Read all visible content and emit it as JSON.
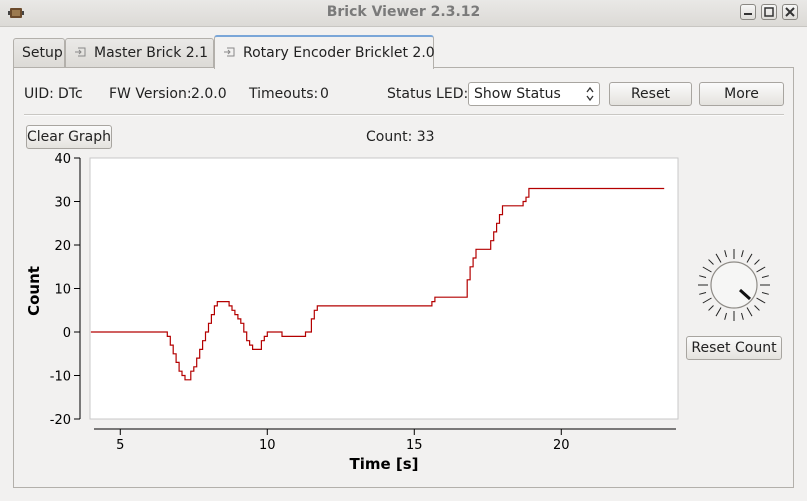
{
  "window": {
    "title": "Brick Viewer 2.3.12"
  },
  "tabs": [
    {
      "label": "Setup"
    },
    {
      "label": "Master Brick 2.1"
    },
    {
      "label": "Rotary Encoder Bricklet 2.0"
    }
  ],
  "info": {
    "uid_label": "UID:",
    "uid": "DTc",
    "fw_label": "FW Version:",
    "fw": "2.0.0",
    "timeouts_label": "Timeouts:",
    "timeouts": "0",
    "status_led_label": "Status LED:",
    "status_led_value": "Show Status",
    "reset_label": "Reset",
    "more_label": "More"
  },
  "graph_controls": {
    "clear_label": "Clear Graph",
    "count_text": "Count: 33"
  },
  "knob": {
    "reset_count_label": "Reset Count",
    "ticks": 24
  },
  "colors": {
    "trace": "#b40000",
    "tab_accent": "#7aa6d8"
  },
  "chart_data": {
    "type": "line",
    "xlabel": "Time [s]",
    "ylabel": "Count",
    "xticks": [
      5,
      10,
      15,
      20
    ],
    "yticks": [
      -20,
      -10,
      0,
      10,
      20,
      30,
      40
    ],
    "xlim": [
      3.97,
      23.97
    ],
    "ylim": [
      -20,
      40
    ],
    "series": [
      {
        "values": [
          [
            4.0,
            0
          ],
          [
            6.5,
            0
          ],
          [
            6.6,
            -1
          ],
          [
            6.7,
            -3
          ],
          [
            6.8,
            -5
          ],
          [
            6.9,
            -7
          ],
          [
            7.0,
            -9
          ],
          [
            7.1,
            -10
          ],
          [
            7.2,
            -11
          ],
          [
            7.3,
            -11
          ],
          [
            7.4,
            -9
          ],
          [
            7.5,
            -8
          ],
          [
            7.6,
            -6
          ],
          [
            7.7,
            -4
          ],
          [
            7.8,
            -2
          ],
          [
            7.9,
            0
          ],
          [
            8.0,
            2
          ],
          [
            8.1,
            4
          ],
          [
            8.2,
            6
          ],
          [
            8.3,
            7
          ],
          [
            8.6,
            7
          ],
          [
            8.7,
            6
          ],
          [
            8.8,
            5
          ],
          [
            8.9,
            4
          ],
          [
            9.0,
            3
          ],
          [
            9.1,
            2
          ],
          [
            9.2,
            0
          ],
          [
            9.3,
            -2
          ],
          [
            9.4,
            -3
          ],
          [
            9.5,
            -4
          ],
          [
            9.7,
            -4
          ],
          [
            9.8,
            -2
          ],
          [
            9.9,
            -1
          ],
          [
            10.0,
            0
          ],
          [
            10.4,
            0
          ],
          [
            10.5,
            -1
          ],
          [
            11.2,
            -1
          ],
          [
            11.3,
            0
          ],
          [
            11.5,
            3
          ],
          [
            11.6,
            5
          ],
          [
            11.7,
            6
          ],
          [
            15.5,
            6
          ],
          [
            15.6,
            7
          ],
          [
            15.7,
            8
          ],
          [
            16.7,
            8
          ],
          [
            16.8,
            12
          ],
          [
            16.9,
            15
          ],
          [
            17.0,
            17
          ],
          [
            17.1,
            19
          ],
          [
            17.5,
            19
          ],
          [
            17.6,
            21
          ],
          [
            17.7,
            23
          ],
          [
            17.8,
            25
          ],
          [
            17.9,
            27
          ],
          [
            18.0,
            29
          ],
          [
            18.6,
            29
          ],
          [
            18.7,
            30
          ],
          [
            18.8,
            31
          ],
          [
            18.9,
            33
          ],
          [
            23.5,
            33
          ]
        ]
      }
    ]
  }
}
